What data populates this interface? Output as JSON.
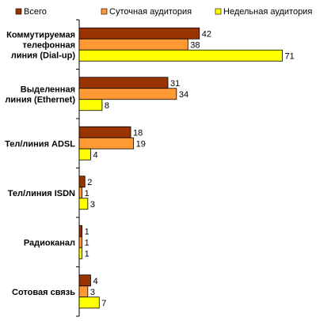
{
  "chart_data": {
    "type": "bar",
    "orientation": "horizontal",
    "categories": [
      [
        "Коммутируемая",
        "телефонная",
        "линия (Dial-up)"
      ],
      [
        "Выделенная",
        "линия (Ethernet)"
      ],
      [
        "Тел/линия ADSL"
      ],
      [
        "Тел/линия ISDN"
      ],
      [
        "Радиоканал"
      ],
      [
        "Сотовая связь"
      ]
    ],
    "series": [
      {
        "name": "Всего",
        "color": "#993300",
        "values": [
          42,
          31,
          18,
          2,
          1,
          4
        ]
      },
      {
        "name": "Суточная аудитория",
        "color": "#FF9933",
        "values": [
          38,
          34,
          19,
          1,
          1,
          3
        ]
      },
      {
        "name": "Недельная аудитория",
        "color": "#FFFF00",
        "values": [
          71,
          8,
          4,
          3,
          1,
          7
        ]
      }
    ],
    "xlim": [
      0,
      75
    ],
    "grid": false,
    "legend_position": "top"
  }
}
